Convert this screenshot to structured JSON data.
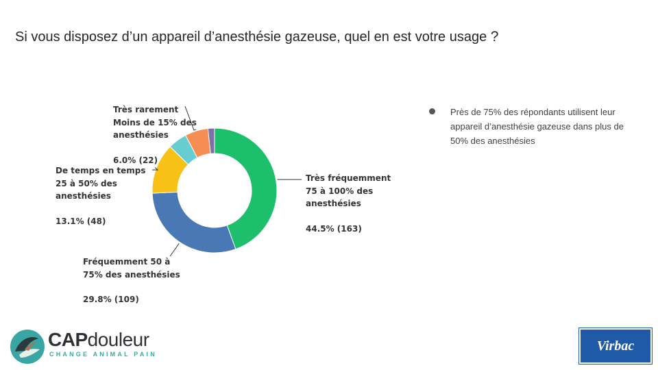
{
  "slide": {
    "title": "Si vous disposez d’un appareil d’anesthésie gazeuse, quel en est votre usage",
    "title_mark": "?",
    "bullet": "Près de 75% des répondants utilisent leur appareil d’anesthésie gazeuse dans plus de 50% des anesthésies"
  },
  "chart_data": {
    "type": "pie",
    "donut": true,
    "start_angle_deg": 0,
    "direction": "clockwise",
    "slices": [
      {
        "label_lines": [
          "Très fréquemment",
          "75 à 100% des",
          "anesthésies"
        ],
        "value_label": "44.5% (163)",
        "percent": 44.5,
        "count": 163,
        "color": "#1dbe6c"
      },
      {
        "label_lines": [
          "Fréquemment 50 à",
          "75% des anesthésies"
        ],
        "value_label": "29.8% (109)",
        "percent": 29.8,
        "count": 109,
        "color": "#4a78b4"
      },
      {
        "label_lines": [
          "De temps en temps",
          "25 à 50% des",
          "anesthésies"
        ],
        "value_label": "13.1% (48)",
        "percent": 13.1,
        "count": 48,
        "color": "#f8c115"
      },
      {
        "label_lines": [],
        "value_label": "",
        "percent": 4.9,
        "count": 18,
        "color": "#67cdd1"
      },
      {
        "label_lines": [
          "Très rarement",
          "Moins de 15% des",
          "anesthésies"
        ],
        "value_label": "6.0% (22)",
        "percent": 6.0,
        "count": 22,
        "color": "#f68d52"
      },
      {
        "label_lines": [],
        "value_label": "",
        "percent": 1.7,
        "count": 6,
        "color": "#7d6fa8"
      }
    ]
  },
  "logos": {
    "capdouleur": {
      "word_a": "CAP",
      "word_b": "douleur",
      "tagline": "CHANGE ANIMAL PAIN"
    },
    "virbac": {
      "text": "Virbac"
    }
  },
  "colors": {
    "background": "#ffffff",
    "title": "#262626",
    "accent_teal": "#38a8a6",
    "virbac_blue": "#1e5aa8"
  }
}
